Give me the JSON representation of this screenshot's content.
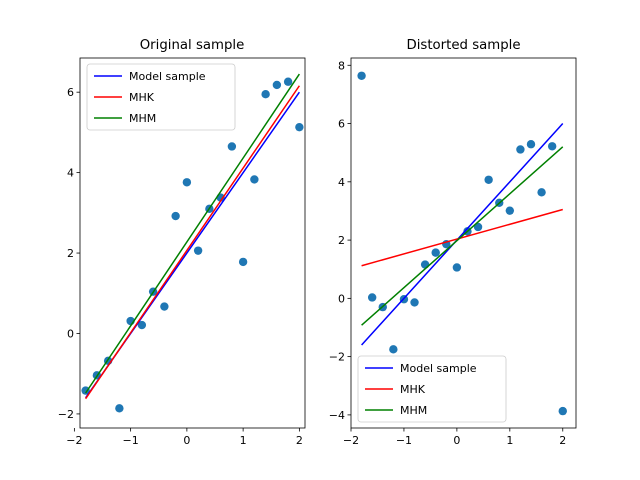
{
  "chart_data": [
    {
      "type": "scatter",
      "title": "Original sample",
      "xlabel": "",
      "ylabel": "",
      "xlim": [
        -1.9,
        2.1
      ],
      "ylim": [
        -2.35,
        6.85
      ],
      "xticks": [
        -2,
        -1,
        0,
        1,
        2
      ],
      "yticks": [
        -2,
        0,
        2,
        4,
        6
      ],
      "grid": false,
      "legend_position": "upper-left",
      "points": {
        "color": "#1f77b4",
        "x": [
          -1.8,
          -1.6,
          -1.4,
          -1.2,
          -1.0,
          -0.8,
          -0.6,
          -0.4,
          -0.2,
          0.0,
          0.2,
          0.4,
          0.6,
          0.8,
          1.0,
          1.2,
          1.4,
          1.6,
          1.8,
          2.0
        ],
        "y": [
          -1.42,
          -1.04,
          -0.68,
          -1.86,
          0.31,
          0.21,
          1.04,
          0.67,
          2.92,
          3.76,
          2.06,
          3.1,
          3.38,
          4.65,
          1.78,
          3.83,
          5.95,
          6.18,
          6.26,
          5.13
        ]
      },
      "series": [
        {
          "name": "Model sample",
          "color": "#0000ff",
          "x": [
            -1.8,
            2.0
          ],
          "y": [
            -1.6,
            6.0
          ]
        },
        {
          "name": "MHK",
          "color": "#ff0000",
          "x": [
            -1.8,
            2.0
          ],
          "y": [
            -1.62,
            6.16
          ]
        },
        {
          "name": "MHM",
          "color": "#008000",
          "x": [
            -1.8,
            2.0
          ],
          "y": [
            -1.48,
            6.45
          ]
        }
      ]
    },
    {
      "type": "scatter",
      "title": "Distorted sample",
      "xlabel": "",
      "ylabel": "",
      "xlim": [
        -2.0,
        2.25
      ],
      "ylim": [
        -4.45,
        8.25
      ],
      "xticks": [
        -2,
        -1,
        0,
        1,
        2
      ],
      "yticks": [
        -4,
        -2,
        0,
        2,
        4,
        6,
        8
      ],
      "grid": false,
      "legend_position": "lower-left",
      "points": {
        "color": "#1f77b4",
        "x": [
          -1.8,
          -1.6,
          -1.4,
          -1.2,
          -1.0,
          -0.8,
          -0.6,
          -0.4,
          -0.2,
          0.0,
          0.2,
          0.4,
          0.6,
          0.8,
          1.0,
          1.2,
          1.4,
          1.6,
          1.8,
          2.0
        ],
        "y": [
          7.64,
          0.03,
          -0.3,
          -1.75,
          -0.03,
          -0.14,
          1.16,
          1.57,
          1.86,
          1.06,
          2.3,
          2.45,
          4.07,
          3.28,
          3.01,
          5.11,
          5.29,
          3.64,
          5.22,
          -3.87
        ]
      },
      "series": [
        {
          "name": "Model sample",
          "color": "#0000ff",
          "x": [
            -1.8,
            2.0
          ],
          "y": [
            -1.6,
            6.0
          ]
        },
        {
          "name": "MHK",
          "color": "#ff0000",
          "x": [
            -1.8,
            2.0
          ],
          "y": [
            1.12,
            3.05
          ]
        },
        {
          "name": "MHM",
          "color": "#008000",
          "x": [
            -1.8,
            2.0
          ],
          "y": [
            -0.92,
            5.2
          ]
        }
      ]
    }
  ]
}
